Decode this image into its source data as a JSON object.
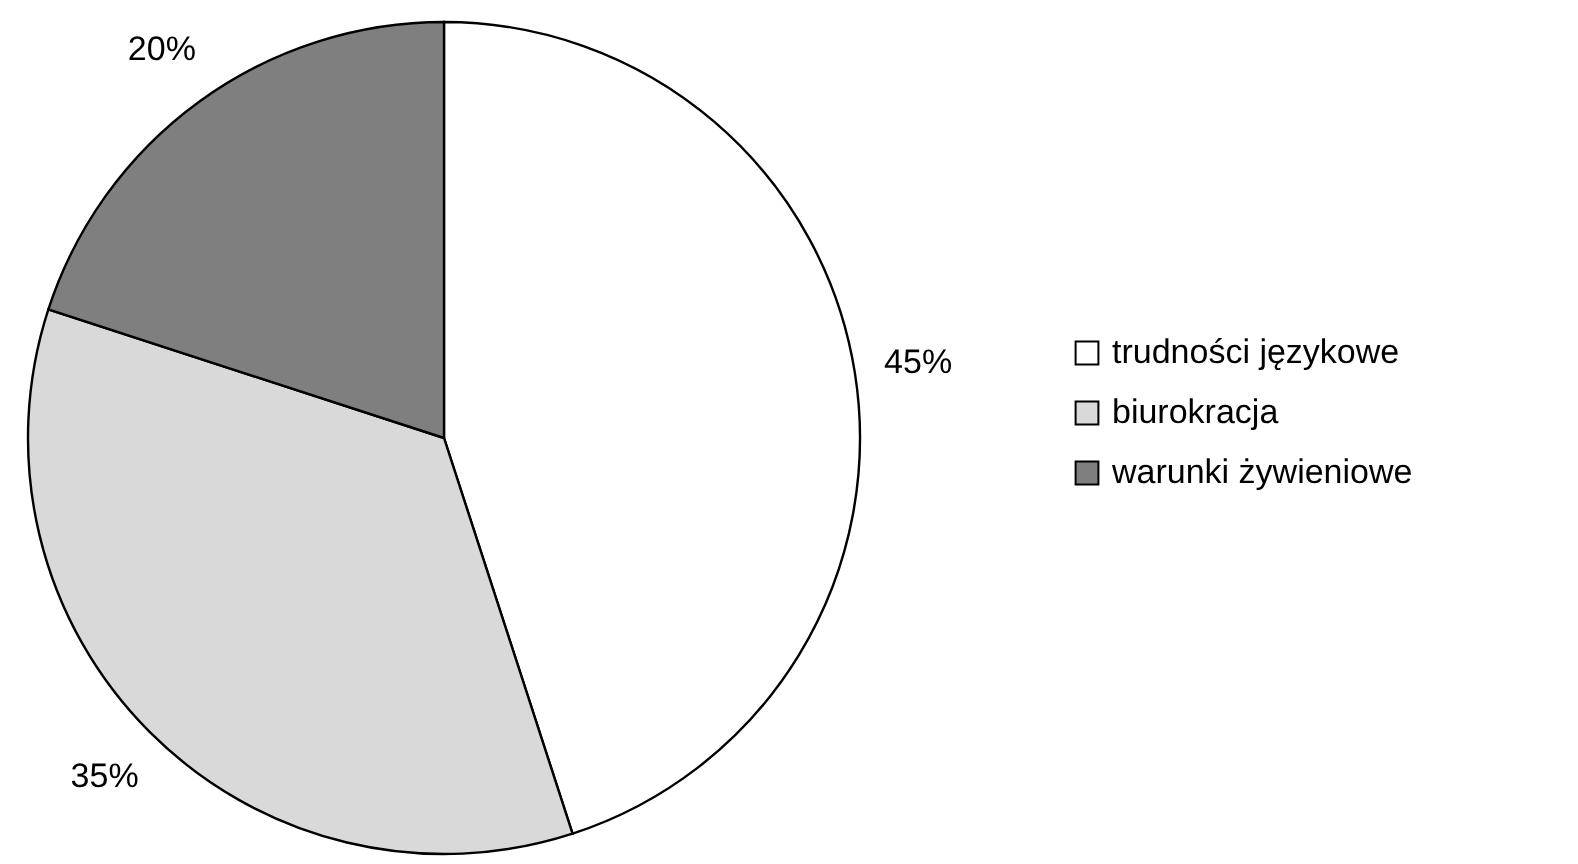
{
  "chart_data": {
    "type": "pie",
    "categories": [
      "trudności językowe",
      "biurokracja",
      "warunki żywieniowe"
    ],
    "values": [
      45,
      35,
      20
    ],
    "value_labels": [
      "45%",
      "35%",
      "20%"
    ],
    "colors": [
      "#ffffff",
      "#d9d9d9",
      "#7f7f7f"
    ],
    "legend": "right"
  }
}
